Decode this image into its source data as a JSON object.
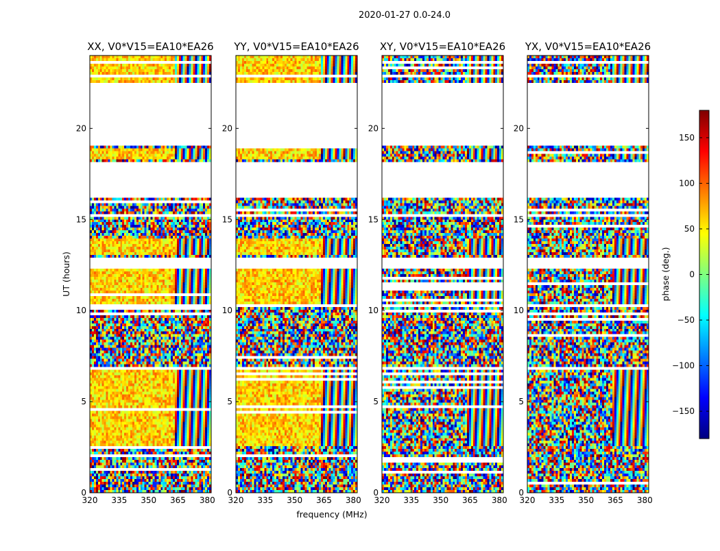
{
  "chart_data": {
    "type": "heatmap",
    "suptitle": "2020-01-27 0.0-24.0",
    "xlabel": "frequency (MHz)",
    "ylabel": "UT (hours)",
    "xlim": [
      320,
      382
    ],
    "ylim": [
      0,
      24
    ],
    "xticks": [
      "320",
      "335",
      "350",
      "365",
      "380"
    ],
    "xtick_values": [
      320,
      335,
      350,
      365,
      380
    ],
    "yticks": [
      "0",
      "5",
      "10",
      "15",
      "20"
    ],
    "ytick_values": [
      0,
      5,
      10,
      15,
      20
    ],
    "colorbar": {
      "label": "phase (deg.)",
      "range": [
        -180,
        180
      ],
      "ticks": [
        "150",
        "100",
        "50",
        "0",
        "−50",
        "−100",
        "−150"
      ],
      "tick_values": [
        150,
        100,
        50,
        0,
        -50,
        -100,
        -150
      ],
      "colormap": [
        "#00007f",
        "#0000ff",
        "#007fff",
        "#00ffff",
        "#7fff7f",
        "#ffff00",
        "#ff7f00",
        "#ff0000",
        "#7f0000"
      ]
    },
    "panels": [
      {
        "name": "XX",
        "title": "XX, V0*V15=EA10*EA26"
      },
      {
        "name": "YY",
        "title": "YY, V0*V15=EA10*EA26"
      },
      {
        "name": "XY",
        "title": "XY, V0*V15=EA10*EA26"
      },
      {
        "name": "YX",
        "title": "YX, V0*V15=EA10*EA26"
      }
    ],
    "observed_ut_ranges": [
      [
        0.0,
        2.5
      ],
      [
        2.6,
        6.8
      ],
      [
        6.9,
        10.2
      ],
      [
        10.4,
        12.3
      ],
      [
        12.9,
        15.2
      ],
      [
        15.3,
        16.2
      ],
      [
        18.2,
        19.0
      ],
      [
        22.5,
        22.8
      ],
      [
        23.0,
        24.0
      ]
    ],
    "phase_coherent_ut_ranges": [
      [
        2.6,
        6.8
      ],
      [
        10.4,
        12.3
      ],
      [
        13.0,
        14.0
      ],
      [
        18.3,
        18.9
      ],
      [
        22.5,
        24.0
      ]
    ],
    "phase_coherent_freq_max": 363
  }
}
